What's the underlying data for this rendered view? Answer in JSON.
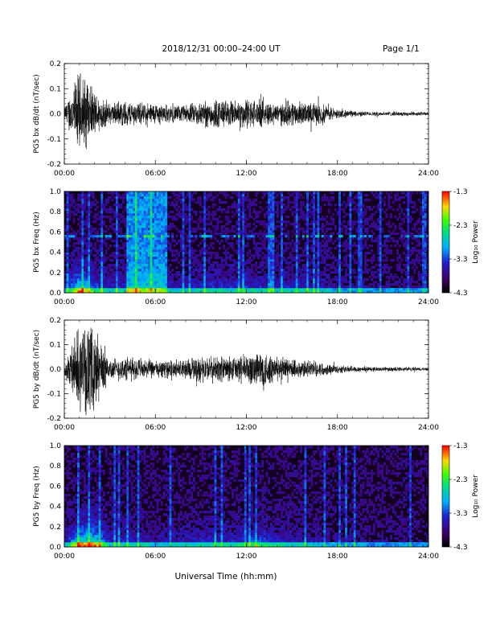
{
  "header": {
    "title": "2018/12/31  00:00–24:00 UT",
    "page": "Page 1/1"
  },
  "xlabel": "Universal Time (hh:mm)",
  "chart_data": [
    {
      "type": "line",
      "ylabel": "PG5 bx dB/dt (nT/sec)",
      "ylim": [
        -0.2,
        0.2
      ],
      "yticks": [
        "0.2",
        "0.1",
        "0.0",
        "-0.1",
        "-0.2"
      ],
      "xlim": [
        0,
        24
      ],
      "xticks": [
        "00:00",
        "06:00",
        "12:00",
        "18:00",
        "24:00"
      ],
      "envelope_hours": [
        0,
        1,
        2,
        3,
        4,
        5,
        6,
        7,
        8,
        9,
        10,
        11,
        12,
        13,
        14,
        15,
        16,
        17,
        18,
        19,
        20,
        21,
        22,
        23,
        24
      ],
      "envelope_amplitude": [
        0.03,
        0.2,
        0.1,
        0.05,
        0.06,
        0.05,
        0.05,
        0.04,
        0.04,
        0.06,
        0.07,
        0.06,
        0.07,
        0.06,
        0.05,
        0.06,
        0.05,
        0.05,
        0.02,
        0.015,
        0.01,
        0.01,
        0.01,
        0.01,
        0.008
      ]
    },
    {
      "type": "heatmap",
      "ylabel": "PG5 bx Freq (Hz)",
      "ylim": [
        0.0,
        1.0
      ],
      "yticks": [
        "1.0",
        "0.8",
        "0.6",
        "0.4",
        "0.2",
        "0.0"
      ],
      "xlim": [
        0,
        24
      ],
      "xticks": [
        "00:00",
        "06:00",
        "12:00",
        "18:00",
        "24:00"
      ],
      "colorbar": {
        "label": "Log₁₀ Power",
        "range": [
          -4.3,
          -1.3
        ],
        "ticks": [
          "-1.3",
          "-2.3",
          "-3.3",
          "-4.3"
        ]
      },
      "enhanced_interval_hours": [
        4.1,
        6.8
      ],
      "spectral_line_hz": 0.57
    },
    {
      "type": "line",
      "ylabel": "PG5 by dB/dt (nT/sec)",
      "ylim": [
        -0.2,
        0.2
      ],
      "yticks": [
        "0.2",
        "0.1",
        "0.0",
        "-0.1",
        "-0.2"
      ],
      "xlim": [
        0,
        24
      ],
      "xticks": [
        "00:00",
        "06:00",
        "12:00",
        "18:00",
        "24:00"
      ],
      "envelope_hours": [
        0,
        1,
        2,
        3,
        4,
        5,
        6,
        7,
        8,
        9,
        10,
        11,
        12,
        13,
        14,
        15,
        16,
        17,
        18,
        19,
        20,
        21,
        22,
        23,
        24
      ],
      "envelope_amplitude": [
        0.03,
        0.2,
        0.2,
        0.05,
        0.06,
        0.05,
        0.04,
        0.04,
        0.05,
        0.06,
        0.06,
        0.06,
        0.07,
        0.1,
        0.06,
        0.05,
        0.04,
        0.03,
        0.02,
        0.015,
        0.012,
        0.01,
        0.01,
        0.01,
        0.008
      ]
    },
    {
      "type": "heatmap",
      "ylabel": "PG5 by Freq (Hz)",
      "ylim": [
        0.0,
        1.0
      ],
      "yticks": [
        "1.0",
        "0.8",
        "0.6",
        "0.4",
        "0.2",
        "0.0"
      ],
      "xlim": [
        0,
        24
      ],
      "xticks": [
        "00:00",
        "06:00",
        "12:00",
        "18:00",
        "24:00"
      ],
      "colorbar": {
        "label": "Log₁₀ Power",
        "range": [
          -4.3,
          -1.3
        ],
        "ticks": [
          "-1.3",
          "-2.3",
          "-3.3",
          "-4.3"
        ]
      }
    }
  ]
}
